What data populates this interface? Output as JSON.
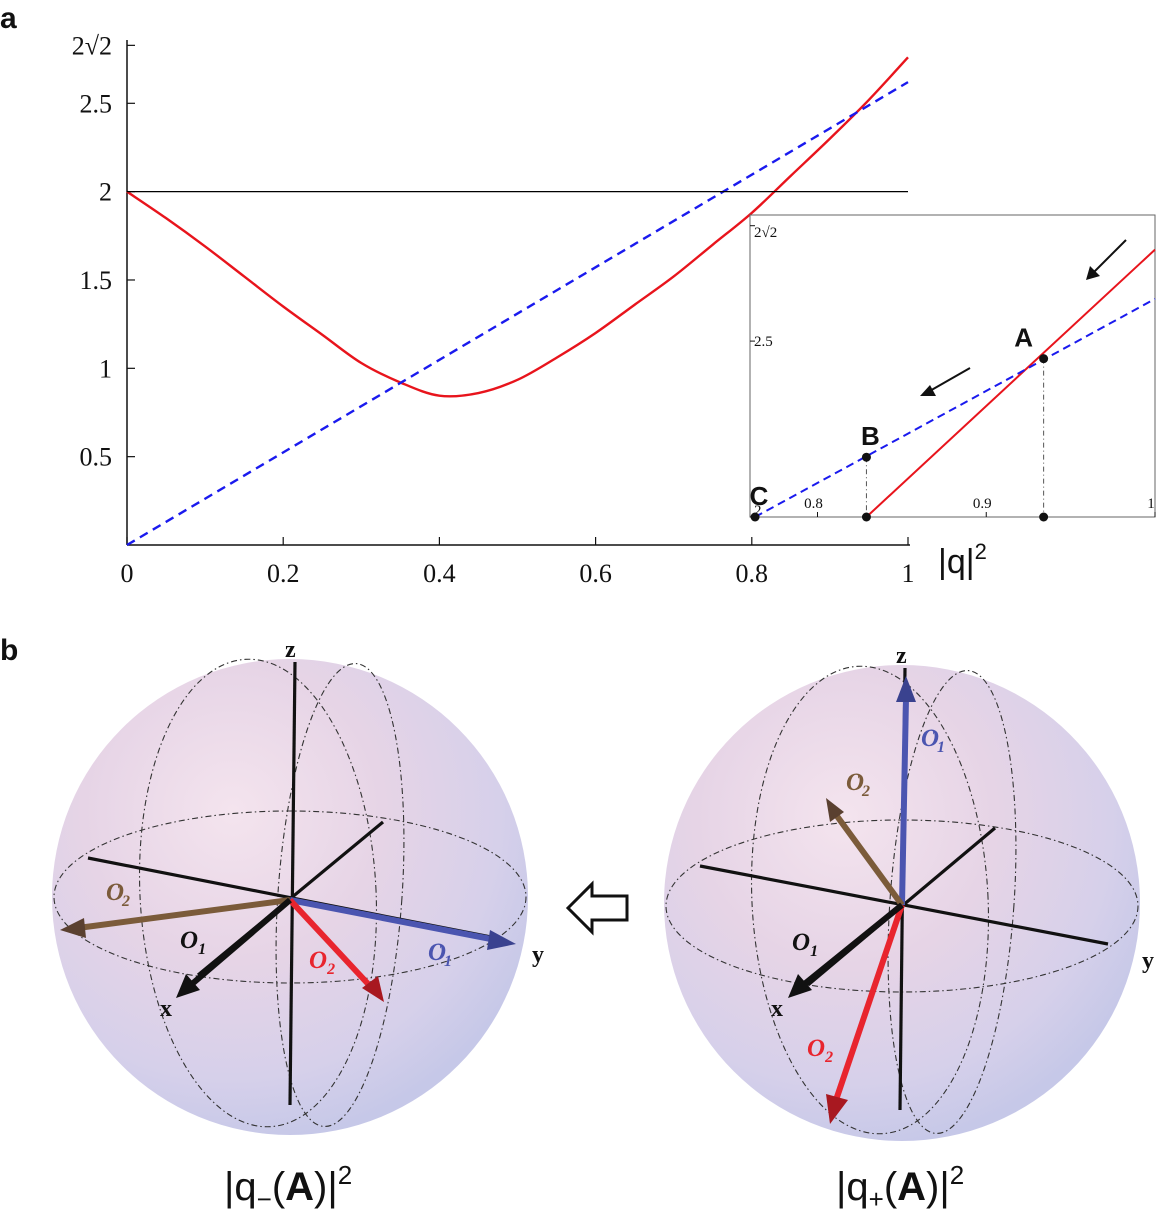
{
  "panel_labels": {
    "a": "a",
    "b": "b"
  },
  "chart_data": [
    {
      "type": "line",
      "panel": "a",
      "title": "",
      "xlabel": "|q|",
      "xlabel_exponent": "2",
      "ylabel": "",
      "xlim": [
        0,
        1
      ],
      "ylim": [
        0,
        2.83
      ],
      "x_ticks": [
        0,
        0.2,
        0.4,
        0.6,
        0.8,
        1
      ],
      "x_tick_labels": [
        "0",
        "0.2",
        "0.4",
        "0.6",
        "0.8",
        "1"
      ],
      "y_ticks": [
        0.5,
        1,
        1.5,
        2,
        2.5,
        2.828
      ],
      "y_tick_labels": [
        "0.5",
        "1",
        "1.5",
        "2",
        "2.5",
        "2√2"
      ],
      "series": [
        {
          "name": "red-solid",
          "style": "solid",
          "color": "#e8141c",
          "x": [
            0,
            0.05,
            0.1,
            0.15,
            0.2,
            0.25,
            0.3,
            0.35,
            0.4,
            0.45,
            0.5,
            0.55,
            0.6,
            0.65,
            0.7,
            0.75,
            0.8,
            0.85,
            0.9,
            0.95,
            1.0
          ],
          "y": [
            2.0,
            1.85,
            1.69,
            1.52,
            1.35,
            1.19,
            1.03,
            0.92,
            0.845,
            0.86,
            0.935,
            1.06,
            1.2,
            1.36,
            1.52,
            1.7,
            1.88,
            2.09,
            2.3,
            2.52,
            2.76
          ]
        },
        {
          "name": "blue-dashed",
          "style": "dashed",
          "color": "#1a1aee",
          "x": [
            0,
            1
          ],
          "y": [
            0,
            2.62
          ]
        },
        {
          "name": "reference-line",
          "style": "solid",
          "color": "#000000",
          "x": [
            0,
            1
          ],
          "y": [
            2,
            2
          ]
        }
      ]
    },
    {
      "type": "line",
      "panel": "a-inset",
      "xlim": [
        0.76,
        1.0
      ],
      "ylim": [
        2.0,
        2.83
      ],
      "x_ticks": [
        0.8,
        0.9,
        1
      ],
      "x_tick_labels": [
        "0.8",
        "0.9",
        "1"
      ],
      "y_ticks": [
        2,
        2.5,
        2.828
      ],
      "y_tick_labels": [
        "2",
        "2.5",
        "2√2"
      ],
      "series": [
        {
          "name": "red-solid",
          "style": "solid",
          "color": "#e8141c",
          "x": [
            0.829,
            1.0
          ],
          "y": [
            2.0,
            2.76
          ]
        },
        {
          "name": "blue-dashed",
          "style": "dashed",
          "color": "#1a1aee",
          "x": [
            0.763,
            1.0
          ],
          "y": [
            2.0,
            2.62
          ]
        }
      ],
      "points": [
        {
          "label": "A",
          "x": 0.934,
          "y": 2.45
        },
        {
          "label": "B",
          "x": 0.829,
          "y": 2.17
        },
        {
          "label": "C",
          "x": 0.763,
          "y": 2.0
        }
      ]
    }
  ],
  "spheres": [
    {
      "caption_pre": "|q",
      "caption_sub": "−",
      "caption_bold": "A",
      "caption_post": ")|",
      "caption_exp": "2",
      "axis_labels": {
        "x": "x",
        "y": "y",
        "z": "z"
      },
      "vectors": [
        {
          "symbol": "O",
          "sub": "1",
          "prime": false,
          "color": "#111111"
        },
        {
          "symbol": "O",
          "sub": "2",
          "prime": false,
          "color": "#e8252e"
        },
        {
          "symbol": "O",
          "sub": "1",
          "prime": true,
          "color": "#4b55b0"
        },
        {
          "symbol": "O",
          "sub": "2",
          "prime": true,
          "color": "#7b5b3a"
        }
      ]
    },
    {
      "caption_pre": "|q",
      "caption_sub": "+",
      "caption_bold": "A",
      "caption_post": ")|",
      "caption_exp": "2",
      "axis_labels": {
        "x": "x",
        "y": "y",
        "z": "z"
      },
      "vectors": [
        {
          "symbol": "O",
          "sub": "1",
          "prime": false,
          "color": "#111111"
        },
        {
          "symbol": "O",
          "sub": "2",
          "prime": false,
          "color": "#e8252e"
        },
        {
          "symbol": "O",
          "sub": "1",
          "prime": true,
          "color": "#4b55b0"
        },
        {
          "symbol": "O",
          "sub": "2",
          "prime": true,
          "color": "#7b5b3a"
        }
      ]
    }
  ],
  "transition_arrow": "hollow-left-arrow-icon"
}
